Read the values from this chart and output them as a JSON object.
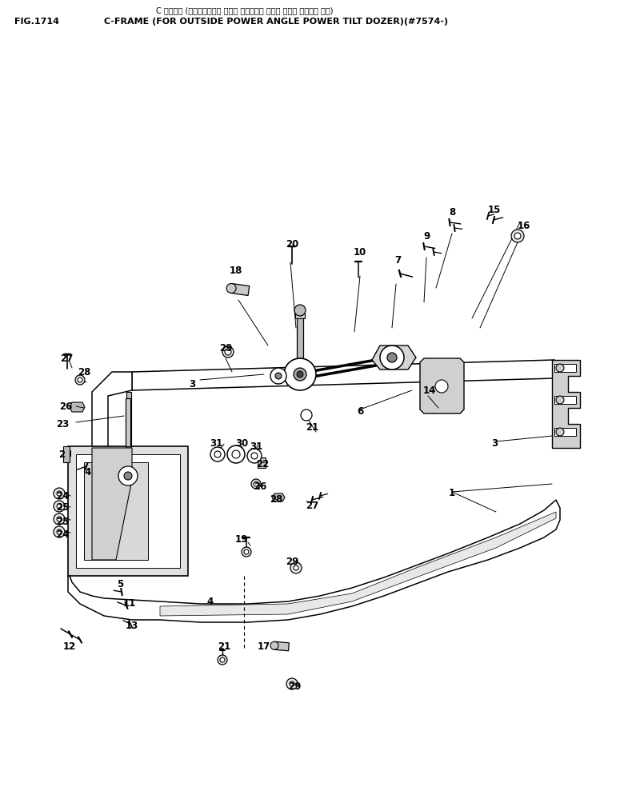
{
  "title_jp": "C フレーム (アウトサイト゚ パワー アンク゚ル パワー チルト トーサー ヨコ)",
  "title_en": "C-FRAME (FOR OUTSIDE POWER ANGLE POWER TILT DOZER)(#7574-)",
  "fig_label": "FIG.1714",
  "bg_color": "#ffffff",
  "line_color": "#000000",
  "text_color": "#000000"
}
